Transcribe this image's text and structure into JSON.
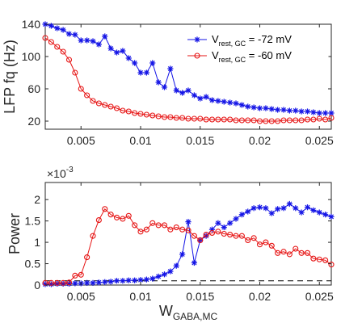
{
  "chart_data": [
    {
      "type": "line",
      "ylabel": "LFP fq (Hz)",
      "xlim": [
        0.002,
        0.026
      ],
      "ylim": [
        10,
        140
      ],
      "xticks": [
        0.005,
        0.01,
        0.015,
        0.02,
        0.025
      ],
      "xtick_labels": [
        "0.005",
        "0.01",
        "0.015",
        "0.02",
        "0.025"
      ],
      "yticks": [
        20,
        60,
        100,
        140
      ],
      "ytick_labels": [
        "20",
        "60",
        "100",
        "140"
      ],
      "legend": {
        "placement": "top-right",
        "entries": [
          {
            "main": "V",
            "sub": "rest, GC",
            "value": " = -72 mV"
          },
          {
            "main": "V",
            "sub": "rest, GC",
            "value": " = -60 mV"
          }
        ]
      },
      "series": [
        {
          "color": "#1414e6",
          "marker": "asterisk",
          "x": [
            0.002,
            0.0025,
            0.003,
            0.0035,
            0.004,
            0.0045,
            0.005,
            0.0055,
            0.006,
            0.0065,
            0.007,
            0.0075,
            0.008,
            0.0085,
            0.009,
            0.0095,
            0.01,
            0.0105,
            0.011,
            0.0115,
            0.012,
            0.0125,
            0.013,
            0.0135,
            0.014,
            0.0145,
            0.015,
            0.0155,
            0.016,
            0.0165,
            0.017,
            0.0175,
            0.018,
            0.0185,
            0.019,
            0.0195,
            0.02,
            0.0205,
            0.021,
            0.0215,
            0.022,
            0.0225,
            0.023,
            0.0235,
            0.024,
            0.0245,
            0.025,
            0.0255,
            0.026
          ],
          "y": [
            140,
            138,
            135,
            133,
            128,
            127,
            120,
            120,
            119,
            115,
            125,
            110,
            105,
            107,
            98,
            92,
            80,
            80,
            92,
            68,
            62,
            85,
            58,
            55,
            58,
            52,
            48,
            50,
            46,
            45,
            44,
            43,
            42,
            40,
            38,
            37,
            36,
            36,
            35,
            34,
            34,
            33,
            33,
            32,
            32,
            31,
            30,
            30,
            30
          ]
        },
        {
          "color": "#e61414",
          "marker": "circle",
          "x": [
            0.002,
            0.0025,
            0.003,
            0.0035,
            0.004,
            0.0045,
            0.005,
            0.0055,
            0.006,
            0.0065,
            0.007,
            0.0075,
            0.008,
            0.0085,
            0.009,
            0.0095,
            0.01,
            0.0105,
            0.011,
            0.0115,
            0.012,
            0.0125,
            0.013,
            0.0135,
            0.014,
            0.0145,
            0.015,
            0.0155,
            0.016,
            0.0165,
            0.017,
            0.0175,
            0.018,
            0.0185,
            0.019,
            0.0195,
            0.02,
            0.0205,
            0.021,
            0.0215,
            0.022,
            0.0225,
            0.023,
            0.0235,
            0.024,
            0.0245,
            0.025,
            0.0255,
            0.026
          ],
          "y": [
            123,
            118,
            112,
            106,
            96,
            80,
            60,
            52,
            45,
            42,
            40,
            38,
            36,
            33,
            32,
            30,
            29,
            28,
            27,
            26,
            25,
            25,
            24,
            24,
            23,
            23,
            23,
            22,
            22,
            22,
            22,
            22,
            21,
            21,
            21,
            21,
            20,
            20,
            20,
            20,
            21,
            21,
            21,
            21,
            22,
            22,
            23,
            22,
            24
          ]
        }
      ]
    },
    {
      "type": "line",
      "ylabel": "Power",
      "xlabel": {
        "main": "W",
        "sub": "GABA,MC"
      },
      "multiplier": {
        "base": "×10",
        "exp": "-3"
      },
      "xlim": [
        0.002,
        0.026
      ],
      "ylim": [
        0,
        2.4
      ],
      "xticks": [
        0.005,
        0.01,
        0.015,
        0.02,
        0.025
      ],
      "xtick_labels": [
        "0.005",
        "0.01",
        "0.015",
        "0.02",
        "0.025"
      ],
      "yticks": [
        0,
        0.5,
        1,
        1.5,
        2
      ],
      "ytick_labels": [
        "0",
        "0.5",
        "1",
        "1.5",
        "2"
      ],
      "reference_line": {
        "y": 0.1,
        "style": "dashed",
        "color": "#000000"
      },
      "series": [
        {
          "color": "#1414e6",
          "marker": "asterisk",
          "x": [
            0.002,
            0.0025,
            0.003,
            0.0035,
            0.004,
            0.0045,
            0.005,
            0.0055,
            0.006,
            0.0065,
            0.007,
            0.0075,
            0.008,
            0.0085,
            0.009,
            0.0095,
            0.01,
            0.0105,
            0.011,
            0.0115,
            0.012,
            0.0125,
            0.013,
            0.0135,
            0.014,
            0.0145,
            0.015,
            0.0155,
            0.016,
            0.0165,
            0.017,
            0.0175,
            0.018,
            0.0185,
            0.019,
            0.0195,
            0.02,
            0.0205,
            0.021,
            0.0215,
            0.022,
            0.0225,
            0.023,
            0.0235,
            0.024,
            0.0245,
            0.025,
            0.0255,
            0.026
          ],
          "y": [
            0.02,
            0.02,
            0.03,
            0.03,
            0.03,
            0.04,
            0.04,
            0.05,
            0.05,
            0.06,
            0.07,
            0.08,
            0.1,
            0.1,
            0.11,
            0.11,
            0.12,
            0.13,
            0.15,
            0.2,
            0.25,
            0.32,
            0.45,
            0.72,
            1.48,
            0.52,
            1.05,
            1.15,
            1.3,
            1.45,
            1.35,
            1.45,
            1.55,
            1.65,
            1.72,
            1.8,
            1.82,
            1.8,
            1.68,
            1.78,
            1.8,
            1.9,
            1.8,
            1.7,
            1.82,
            1.75,
            1.7,
            1.65,
            1.6
          ]
        },
        {
          "color": "#e61414",
          "marker": "circle",
          "x": [
            0.002,
            0.0025,
            0.003,
            0.0035,
            0.004,
            0.0045,
            0.005,
            0.0055,
            0.006,
            0.0065,
            0.007,
            0.0075,
            0.008,
            0.0085,
            0.009,
            0.0095,
            0.01,
            0.0105,
            0.011,
            0.0115,
            0.012,
            0.0125,
            0.013,
            0.0135,
            0.014,
            0.0145,
            0.015,
            0.0155,
            0.016,
            0.0165,
            0.017,
            0.0175,
            0.018,
            0.0185,
            0.019,
            0.0195,
            0.02,
            0.0205,
            0.021,
            0.0215,
            0.022,
            0.0225,
            0.023,
            0.0235,
            0.024,
            0.0245,
            0.025,
            0.0255,
            0.026
          ],
          "y": [
            0.05,
            0.05,
            0.05,
            0.05,
            0.06,
            0.22,
            0.24,
            0.65,
            1.15,
            1.52,
            1.78,
            1.65,
            1.58,
            1.55,
            1.62,
            1.4,
            1.25,
            1.3,
            1.45,
            1.4,
            1.4,
            1.3,
            1.35,
            1.3,
            1.28,
            1.15,
            1.05,
            1.18,
            1.22,
            1.25,
            1.2,
            1.18,
            1.15,
            1.15,
            1.05,
            1.1,
            0.95,
            1.0,
            0.92,
            0.75,
            0.78,
            0.72,
            0.85,
            0.75,
            0.75,
            0.62,
            0.6,
            0.58,
            0.48
          ]
        }
      ]
    }
  ]
}
